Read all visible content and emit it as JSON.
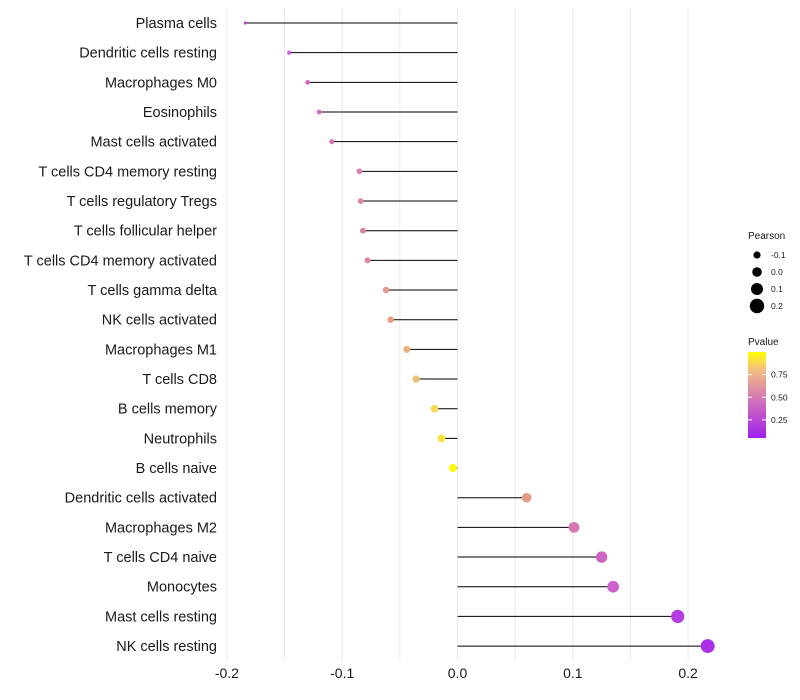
{
  "chart_data": {
    "type": "lollipop",
    "title": "",
    "xlabel": "",
    "ylabel": "",
    "xlim": [
      -0.2,
      0.22
    ],
    "x_ticks": [
      -0.2,
      -0.1,
      0.0,
      0.1,
      0.2
    ],
    "x_tick_labels": [
      "-0.2",
      "-0.1",
      "0.0",
      "0.1",
      "0.2"
    ],
    "grid": true,
    "points": [
      {
        "category": "Plasma cells",
        "pearson": -0.184,
        "pvalue": 0.22
      },
      {
        "category": "Dendritic cells resting",
        "pearson": -0.146,
        "pvalue": 0.3
      },
      {
        "category": "Macrophages M0",
        "pearson": -0.13,
        "pvalue": 0.36
      },
      {
        "category": "Eosinophils",
        "pearson": -0.12,
        "pvalue": 0.4
      },
      {
        "category": "Mast cells activated",
        "pearson": -0.109,
        "pvalue": 0.44
      },
      {
        "category": "T cells CD4 memory resting",
        "pearson": -0.085,
        "pvalue": 0.52
      },
      {
        "category": "T cells regulatory  Tregs",
        "pearson": -0.084,
        "pvalue": 0.53
      },
      {
        "category": "T cells follicular helper",
        "pearson": -0.082,
        "pvalue": 0.54
      },
      {
        "category": "T cells CD4 memory activated",
        "pearson": -0.078,
        "pvalue": 0.56
      },
      {
        "category": "T cells gamma delta",
        "pearson": -0.062,
        "pvalue": 0.66
      },
      {
        "category": "NK cells activated",
        "pearson": -0.058,
        "pvalue": 0.68
      },
      {
        "category": "Macrophages M1",
        "pearson": -0.044,
        "pvalue": 0.75
      },
      {
        "category": "T cells CD8",
        "pearson": -0.036,
        "pvalue": 0.8
      },
      {
        "category": "B cells memory",
        "pearson": -0.02,
        "pvalue": 0.89
      },
      {
        "category": "Neutrophils",
        "pearson": -0.014,
        "pvalue": 0.92
      },
      {
        "category": "B cells naive",
        "pearson": -0.004,
        "pvalue": 0.98
      },
      {
        "category": "Dendritic cells activated",
        "pearson": 0.06,
        "pvalue": 0.67
      },
      {
        "category": "Macrophages M2",
        "pearson": 0.101,
        "pvalue": 0.47
      },
      {
        "category": "T cells CD4 naive",
        "pearson": 0.125,
        "pvalue": 0.37
      },
      {
        "category": "Monocytes",
        "pearson": 0.135,
        "pvalue": 0.34
      },
      {
        "category": "Mast cells resting",
        "pearson": 0.191,
        "pvalue": 0.17
      },
      {
        "category": "NK cells resting",
        "pearson": 0.217,
        "pvalue": 0.12
      }
    ],
    "legend": {
      "size_title": "Pearson",
      "size_breaks": [
        -0.1,
        0.0,
        0.1,
        0.2
      ],
      "size_labels": [
        "-0.1",
        "0.0",
        "0.1",
        "0.2"
      ],
      "color_title": "Pvalue",
      "color_breaks": [
        0.25,
        0.5,
        0.75
      ],
      "color_labels": [
        "0.25",
        "0.50",
        "0.75"
      ],
      "color_range": [
        0.05,
        1.0
      ],
      "color_low": "#a020f0",
      "color_high": "#ffff00",
      "placement": "right"
    }
  }
}
